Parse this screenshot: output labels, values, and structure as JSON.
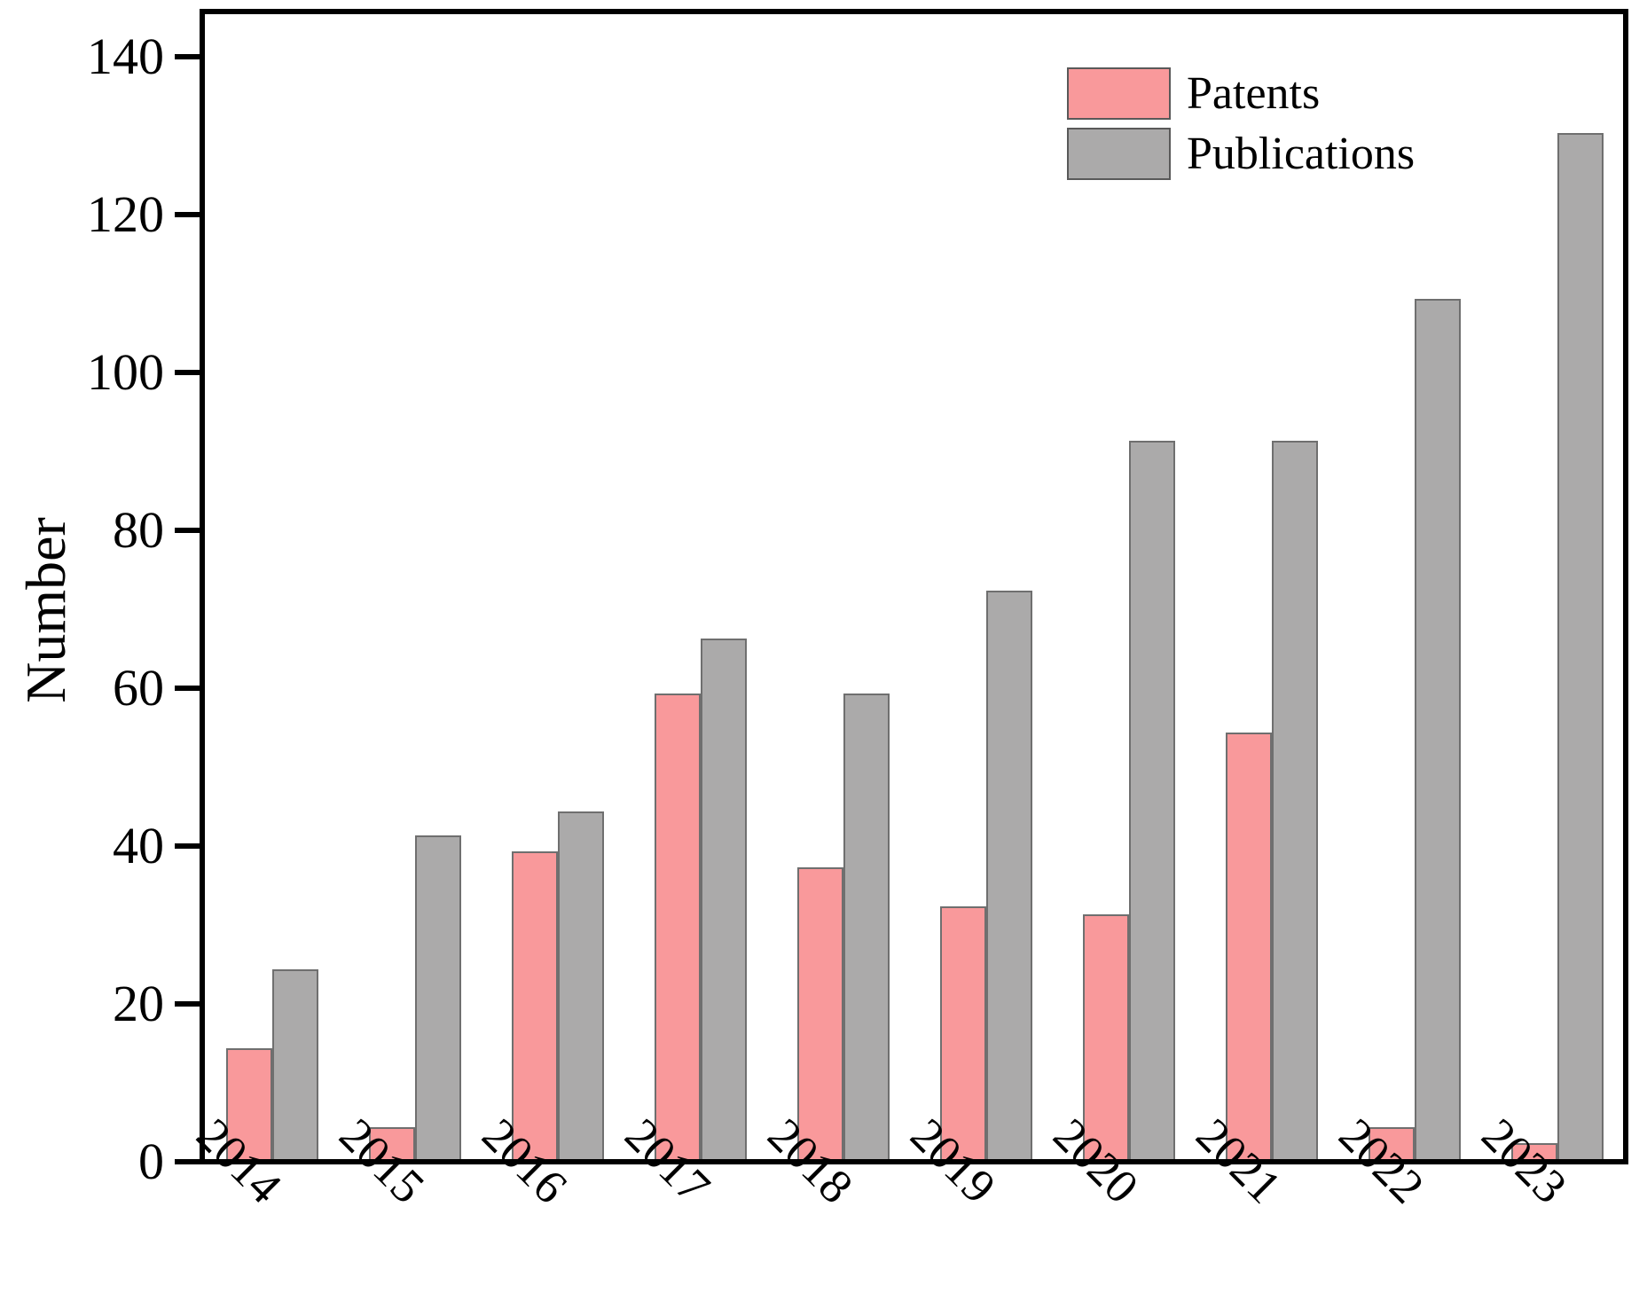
{
  "figure": {
    "background": "#ffffff"
  },
  "chart_data": {
    "type": "bar",
    "title": "",
    "xlabel": "",
    "ylabel": "Number",
    "categories": [
      "2014",
      "2015",
      "2016",
      "2017",
      "2018",
      "2019",
      "2020",
      "2021",
      "2022",
      "2023"
    ],
    "series": [
      {
        "name": "Patents",
        "color": "#f9999b",
        "edge_color": "#6f6f6f",
        "values": [
          14,
          4,
          39,
          59,
          37,
          32,
          31,
          54,
          4,
          2
        ]
      },
      {
        "name": "Publications",
        "color": "#abaaaa",
        "edge_color": "#6f6f6f",
        "values": [
          24,
          41,
          44,
          66,
          59,
          72,
          91,
          91,
          109,
          130
        ]
      }
    ],
    "ylim": [
      0,
      145
    ],
    "yticks": [
      0,
      20,
      40,
      60,
      80,
      100,
      120,
      140
    ],
    "grid": false,
    "legend_position": "top-right",
    "axis_color": "#000000"
  }
}
